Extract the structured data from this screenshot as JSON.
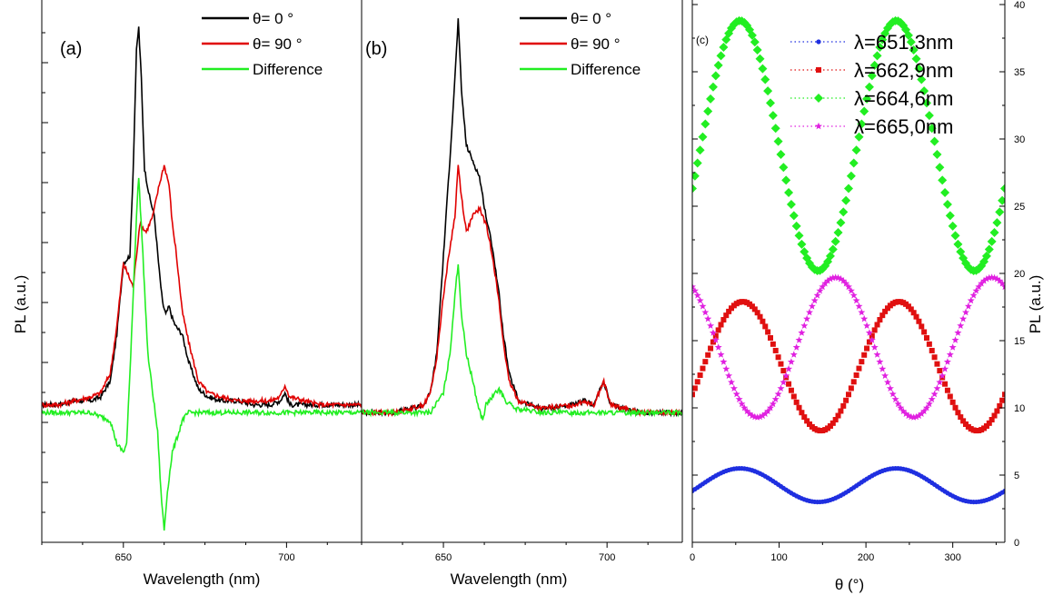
{
  "chart_data": [
    {
      "type": "line",
      "panel_label": "(a)",
      "xlabel": "Wavelength (nm)",
      "ylabel": "PL (a.u.)",
      "xlim": [
        625,
        723
      ],
      "ylim": [
        -0.33,
        1.05
      ],
      "x_ticks": [
        650,
        700
      ],
      "legend": "top-right",
      "series": [
        {
          "name": "θ= 0 °",
          "color": "#000000",
          "points": [
            [
              625,
              0.02
            ],
            [
              630,
              0.02
            ],
            [
              635,
              0.03
            ],
            [
              640,
              0.03
            ],
            [
              643,
              0.04
            ],
            [
              646,
              0.08
            ],
            [
              648,
              0.2
            ],
            [
              650,
              0.38
            ],
            [
              652,
              0.4
            ],
            [
              653,
              0.62
            ],
            [
              654,
              0.92
            ],
            [
              654.7,
              0.98
            ],
            [
              655.5,
              0.85
            ],
            [
              656.5,
              0.62
            ],
            [
              658,
              0.55
            ],
            [
              659.5,
              0.5
            ],
            [
              661,
              0.36
            ],
            [
              662,
              0.28
            ],
            [
              663,
              0.25
            ],
            [
              664,
              0.27
            ],
            [
              665,
              0.24
            ],
            [
              666,
              0.22
            ],
            [
              668,
              0.2
            ],
            [
              670,
              0.13
            ],
            [
              673,
              0.06
            ],
            [
              676,
              0.04
            ],
            [
              680,
              0.03
            ],
            [
              685,
              0.03
            ],
            [
              690,
              0.02
            ],
            [
              695,
              0.02
            ],
            [
              698,
              0.03
            ],
            [
              699.5,
              0.05
            ],
            [
              701,
              0.02
            ],
            [
              710,
              0.02
            ],
            [
              723,
              0.02
            ]
          ]
        },
        {
          "name": "θ= 90 °",
          "color": "#e00000",
          "points": [
            [
              625,
              0.02
            ],
            [
              630,
              0.02
            ],
            [
              635,
              0.03
            ],
            [
              640,
              0.04
            ],
            [
              643,
              0.05
            ],
            [
              646,
              0.1
            ],
            [
              648,
              0.22
            ],
            [
              650,
              0.38
            ],
            [
              651.5,
              0.35
            ],
            [
              653,
              0.32
            ],
            [
              654,
              0.4
            ],
            [
              655,
              0.48
            ],
            [
              657,
              0.46
            ],
            [
              659,
              0.5
            ],
            [
              661,
              0.58
            ],
            [
              662.5,
              0.63
            ],
            [
              664,
              0.58
            ],
            [
              665,
              0.48
            ],
            [
              666,
              0.42
            ],
            [
              667,
              0.34
            ],
            [
              668,
              0.26
            ],
            [
              670,
              0.18
            ],
            [
              673,
              0.08
            ],
            [
              676,
              0.05
            ],
            [
              680,
              0.04
            ],
            [
              685,
              0.03
            ],
            [
              690,
              0.03
            ],
            [
              695,
              0.03
            ],
            [
              698,
              0.04
            ],
            [
              699.5,
              0.07
            ],
            [
              701,
              0.04
            ],
            [
              710,
              0.02
            ],
            [
              723,
              0.02
            ]
          ]
        },
        {
          "name": "Difference",
          "color": "#22ee22",
          "points": [
            [
              625,
              0.0
            ],
            [
              630,
              0.0
            ],
            [
              635,
              0.0
            ],
            [
              640,
              0.0
            ],
            [
              643,
              -0.01
            ],
            [
              646,
              -0.02
            ],
            [
              648,
              -0.08
            ],
            [
              650,
              -0.1
            ],
            [
              651,
              -0.08
            ],
            [
              652,
              0.1
            ],
            [
              653,
              0.3
            ],
            [
              654,
              0.5
            ],
            [
              654.7,
              0.6
            ],
            [
              656,
              0.4
            ],
            [
              657.5,
              0.15
            ],
            [
              659,
              0.05
            ],
            [
              660.5,
              -0.05
            ],
            [
              661.5,
              -0.2
            ],
            [
              662.5,
              -0.3
            ],
            [
              663.5,
              -0.2
            ],
            [
              665,
              -0.1
            ],
            [
              667,
              -0.05
            ],
            [
              668,
              -0.02
            ],
            [
              670,
              0.0
            ],
            [
              675,
              0.0
            ],
            [
              680,
              0.0
            ],
            [
              690,
              0.0
            ],
            [
              700,
              0.0
            ],
            [
              710,
              0.0
            ],
            [
              723,
              0.0
            ]
          ]
        }
      ]
    },
    {
      "type": "line",
      "panel_label": "(b)",
      "xlabel": "Wavelength (nm)",
      "ylabel": "",
      "xlim": [
        625,
        723
      ],
      "ylim": [
        -0.33,
        1.05
      ],
      "x_ticks": [
        650,
        700
      ],
      "legend": "top-right",
      "series": [
        {
          "name": "θ= 0 °",
          "color": "#000000",
          "points": [
            [
              625,
              0.0
            ],
            [
              635,
              0.0
            ],
            [
              640,
              0.01
            ],
            [
              644,
              0.02
            ],
            [
              646,
              0.05
            ],
            [
              648,
              0.15
            ],
            [
              650,
              0.4
            ],
            [
              652,
              0.65
            ],
            [
              653.5,
              0.85
            ],
            [
              654.5,
              1.0
            ],
            [
              655.5,
              0.82
            ],
            [
              657,
              0.68
            ],
            [
              659,
              0.64
            ],
            [
              661,
              0.6
            ],
            [
              663,
              0.5
            ],
            [
              665,
              0.42
            ],
            [
              667,
              0.3
            ],
            [
              668,
              0.22
            ],
            [
              670,
              0.1
            ],
            [
              673,
              0.03
            ],
            [
              680,
              0.01
            ],
            [
              690,
              0.02
            ],
            [
              693,
              0.03
            ],
            [
              696,
              0.02
            ],
            [
              699,
              0.08
            ],
            [
              701,
              0.02
            ],
            [
              710,
              0.0
            ],
            [
              723,
              0.0
            ]
          ]
        },
        {
          "name": "θ= 90 °",
          "color": "#e00000",
          "points": [
            [
              625,
              0.0
            ],
            [
              635,
              0.0
            ],
            [
              640,
              0.01
            ],
            [
              644,
              0.02
            ],
            [
              646,
              0.05
            ],
            [
              648,
              0.14
            ],
            [
              650,
              0.3
            ],
            [
              652,
              0.42
            ],
            [
              653.5,
              0.5
            ],
            [
              654.5,
              0.63
            ],
            [
              655.5,
              0.55
            ],
            [
              657,
              0.46
            ],
            [
              659,
              0.5
            ],
            [
              661,
              0.52
            ],
            [
              663,
              0.48
            ],
            [
              665,
              0.4
            ],
            [
              667,
              0.28
            ],
            [
              668,
              0.2
            ],
            [
              670,
              0.08
            ],
            [
              673,
              0.03
            ],
            [
              680,
              0.01
            ],
            [
              690,
              0.02
            ],
            [
              693,
              0.03
            ],
            [
              696,
              0.02
            ],
            [
              699,
              0.08
            ],
            [
              701,
              0.02
            ],
            [
              710,
              0.0
            ],
            [
              723,
              0.0
            ]
          ]
        },
        {
          "name": "Difference",
          "color": "#22ee22",
          "points": [
            [
              625,
              0.0
            ],
            [
              640,
              0.0
            ],
            [
              646,
              0.0
            ],
            [
              650,
              0.05
            ],
            [
              652,
              0.15
            ],
            [
              653.5,
              0.3
            ],
            [
              654.5,
              0.38
            ],
            [
              655.5,
              0.25
            ],
            [
              657,
              0.15
            ],
            [
              659,
              0.08
            ],
            [
              660.5,
              0.02
            ],
            [
              662,
              -0.02
            ],
            [
              663,
              0.02
            ],
            [
              665,
              0.04
            ],
            [
              667,
              0.06
            ],
            [
              669,
              0.03
            ],
            [
              672,
              0.01
            ],
            [
              680,
              0.0
            ],
            [
              700,
              0.0
            ],
            [
              723,
              0.0
            ]
          ]
        }
      ]
    },
    {
      "type": "scatter",
      "panel_label": "(c)",
      "xlabel": "θ (°)",
      "ylabel": "PL (a.u.)",
      "xlim": [
        0,
        360
      ],
      "ylim": [
        0,
        40
      ],
      "x_ticks": [
        0,
        100,
        200,
        300
      ],
      "y_ticks": [
        0,
        5,
        10,
        15,
        20,
        25,
        30,
        35,
        40
      ],
      "legend": "top-right",
      "series": [
        {
          "name": "λ=651,3nm",
          "color": "#1f2fe0",
          "marker": "circle",
          "mean": 4.25,
          "amplitude": 1.25,
          "peak_deg": 55
        },
        {
          "name": "λ=662,9nm",
          "color": "#e01010",
          "marker": "square",
          "mean": 13.1,
          "amplitude": 4.8,
          "peak_deg": 58
        },
        {
          "name": "λ=664,6nm",
          "color": "#22ee22",
          "marker": "diamond",
          "mean": 29.5,
          "amplitude": 9.3,
          "peak_deg": 55
        },
        {
          "name": "λ=665,0nm",
          "color": "#e020e0",
          "marker": "star",
          "mean": 14.5,
          "amplitude": 5.2,
          "peak_deg": 165
        }
      ]
    }
  ]
}
